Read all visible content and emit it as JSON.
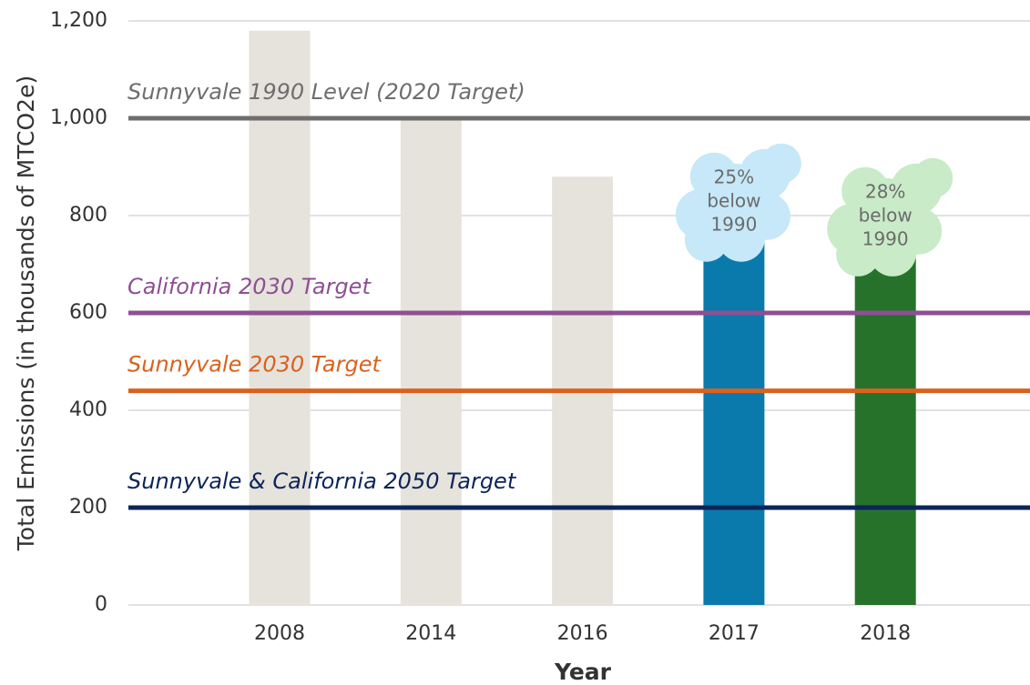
{
  "chart_data": {
    "type": "bar",
    "xlabel": "Year",
    "ylabel": "Total Emissions (in thousands of MTCO2e)",
    "categories": [
      "2008",
      "2014",
      "2016",
      "2017",
      "2018"
    ],
    "values": [
      1180,
      1000,
      880,
      750,
      720
    ],
    "colors": [
      "#e6e3dc",
      "#e6e3dc",
      "#e6e3dc",
      "#0a7aad",
      "#26722b"
    ],
    "ylim": [
      0,
      1200
    ],
    "yticks": [
      0,
      200,
      400,
      600,
      800,
      {
        "value": 1000,
        "label": "1,000"
      },
      {
        "value": 1200,
        "label": "1,200"
      }
    ],
    "grid": true,
    "reference_lines": [
      {
        "label": "Sunnyvale 1990 Level (2020 Target)",
        "value": 1000,
        "color": "#6e6e6e"
      },
      {
        "label": "California 2030 Target",
        "value": 600,
        "color": "#8e4f92"
      },
      {
        "label": "Sunnyvale 2030 Target",
        "value": 440,
        "color": "#d9621e"
      },
      {
        "label": "Sunnyvale & California 2050 Target",
        "value": 200,
        "color": "#0b2559"
      }
    ],
    "annotations": [
      {
        "category": "2017",
        "text": [
          "25%",
          "below",
          "1990"
        ],
        "color": "#c6e8f8"
      },
      {
        "category": "2018",
        "text": [
          "28%",
          "below",
          "1990"
        ],
        "color": "#c9ebc8"
      }
    ]
  }
}
